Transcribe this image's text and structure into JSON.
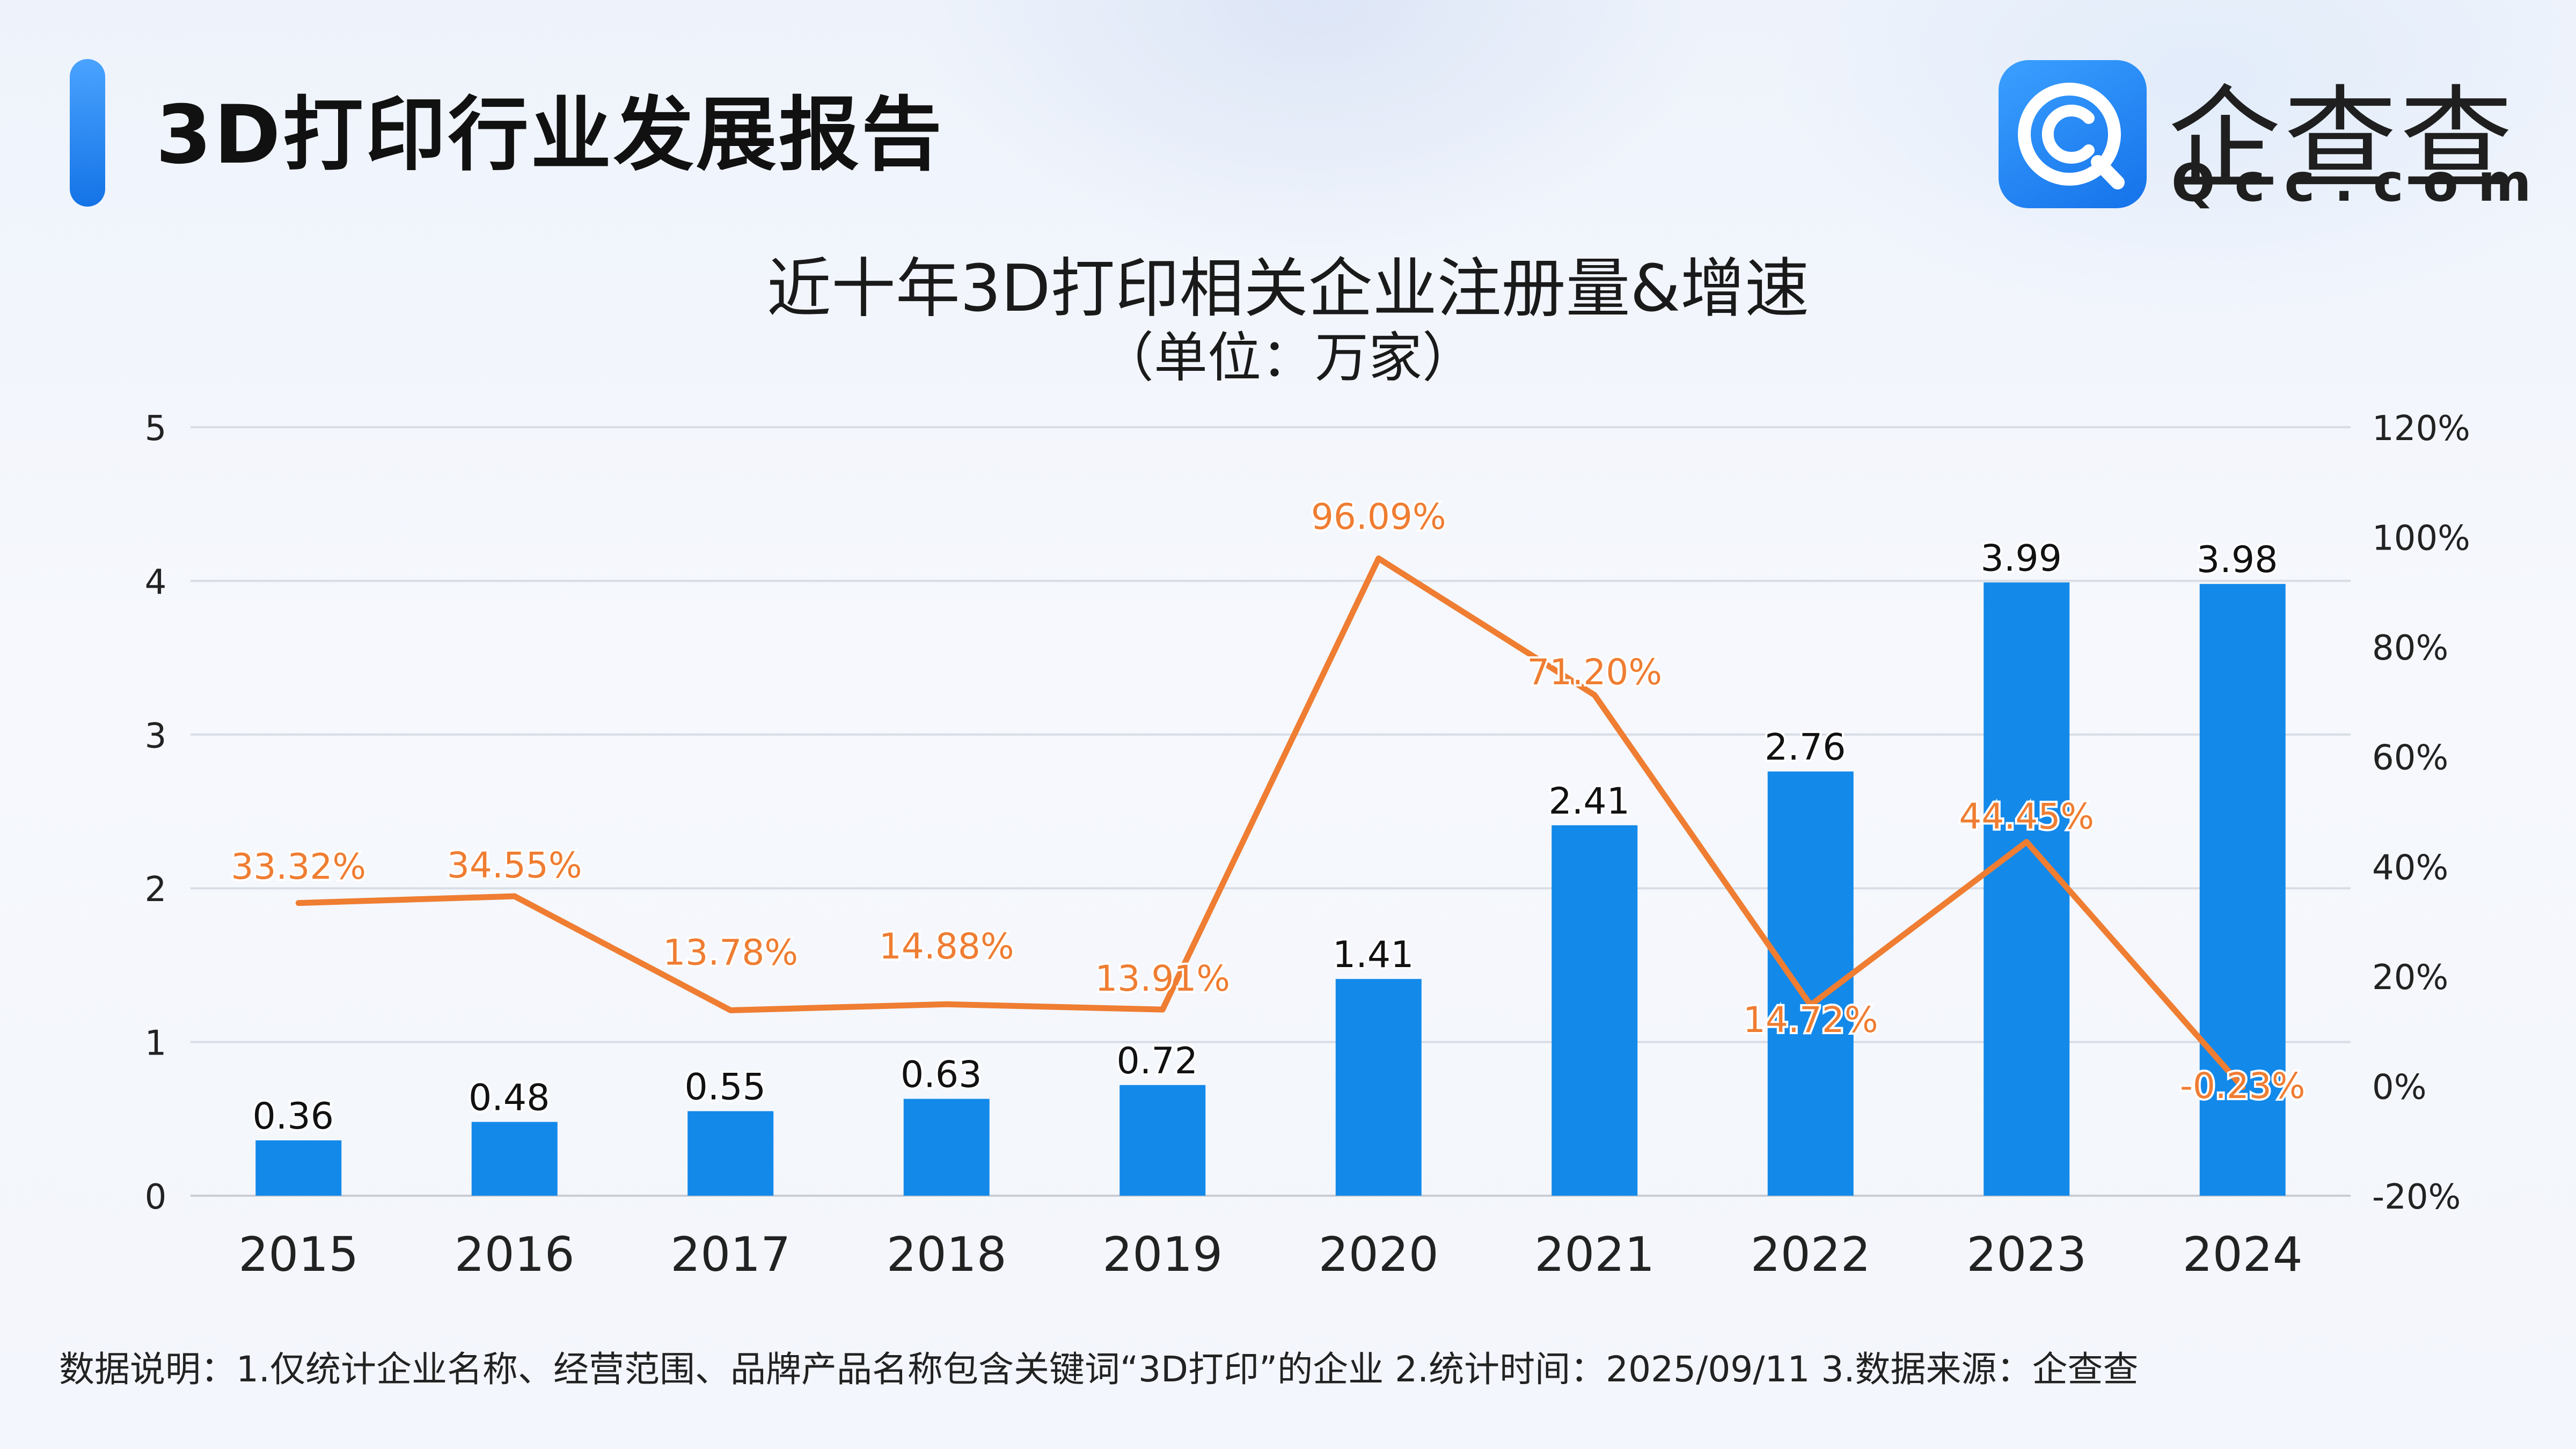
{
  "header": {
    "title": "3D打印行业发展报告",
    "logo_text": "企查查",
    "logo_sub": "Qcc.com"
  },
  "chart_title": "近十年3D打印相关企业注册量&增速",
  "chart_unit": "（单位：万家）",
  "footnote": "数据说明：1.仅统计企业名称、经营范围、品牌产品名称包含关键词“3D打印”的企业   2.统计时间：2025/09/11    3.数据来源：企查查",
  "colors": {
    "bar": "#1389ea",
    "line": "#ef7d32",
    "accent": "#1473e6"
  },
  "chart_data": {
    "type": "bar",
    "categories": [
      "2015",
      "2016",
      "2017",
      "2018",
      "2019",
      "2020",
      "2021",
      "2022",
      "2023",
      "2024"
    ],
    "series": [
      {
        "name": "",
        "type": "bar",
        "axis": "left",
        "values": [
          0.36,
          0.48,
          0.55,
          0.63,
          0.72,
          1.41,
          2.41,
          2.76,
          3.99,
          3.98
        ],
        "labels": [
          "0.36",
          "0.48",
          "0.55",
          "0.63",
          "0.72",
          "1.41",
          "2.41",
          "2.76",
          "3.99",
          "3.98"
        ]
      },
      {
        "name": "",
        "type": "line",
        "axis": "right",
        "values": [
          33.32,
          34.55,
          13.78,
          14.88,
          13.91,
          96.09,
          71.2,
          14.72,
          44.45,
          -0.23
        ],
        "labels": [
          "33.32%",
          "34.55%",
          "13.78%",
          "14.88%",
          "13.91%",
          "96.09%",
          "71.20%",
          "14.72%",
          "44.45%",
          "-0.23%"
        ]
      }
    ],
    "y_left": {
      "ylim": [
        0,
        5
      ],
      "ticks": [
        "0",
        "1",
        "2",
        "3",
        "4",
        "5"
      ]
    },
    "y_right": {
      "ylim": [
        -20,
        120
      ],
      "ticks": [
        "-20%",
        "0%",
        "20%",
        "40%",
        "60%",
        "80%",
        "100%",
        "120%"
      ]
    },
    "grid": true,
    "legend": "none"
  }
}
